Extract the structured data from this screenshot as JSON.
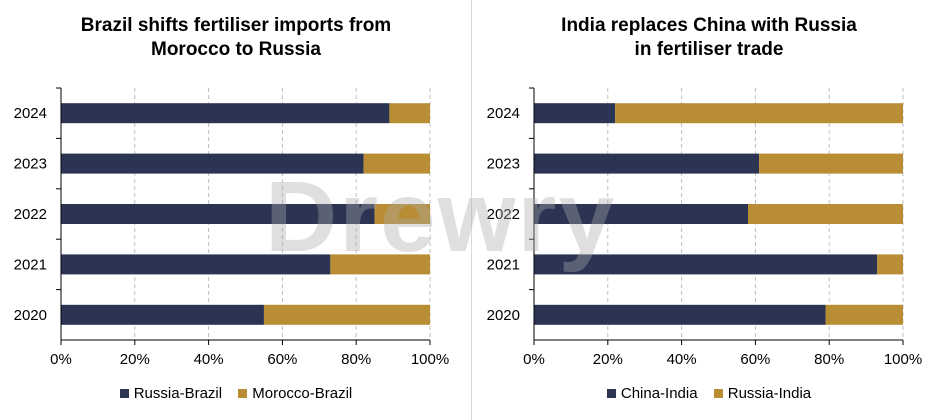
{
  "watermark": "Drewry",
  "colors": {
    "dark": "#2b3553",
    "gold": "#b88d33",
    "grid": "#bfbfbf",
    "axis": "#000000"
  },
  "chart_data": [
    {
      "type": "bar",
      "orientation": "horizontal",
      "stacked": true,
      "title_lines": [
        "Brazil shifts fertiliser imports from",
        "Morocco to Russia"
      ],
      "categories": [
        "2024",
        "2023",
        "2022",
        "2021",
        "2020"
      ],
      "series": [
        {
          "name": "Russia-Brazil",
          "color": "#2b3553",
          "values": [
            89,
            82,
            85,
            73,
            55
          ]
        },
        {
          "name": "Morocco-Brazil",
          "color": "#b88d33",
          "values": [
            11,
            18,
            15,
            27,
            45
          ]
        }
      ],
      "xlim": [
        0,
        100
      ],
      "xticks": [
        "0%",
        "20%",
        "40%",
        "60%",
        "80%",
        "100%"
      ],
      "grid": true,
      "legend": "bottom"
    },
    {
      "type": "bar",
      "orientation": "horizontal",
      "stacked": true,
      "title_lines": [
        "India replaces China with Russia",
        "in fertiliser trade"
      ],
      "categories": [
        "2024",
        "2023",
        "2022",
        "2021",
        "2020"
      ],
      "series": [
        {
          "name": "China-India",
          "color": "#2b3553",
          "values": [
            22,
            61,
            58,
            93,
            79
          ]
        },
        {
          "name": "Russia-India",
          "color": "#b88d33",
          "values": [
            78,
            39,
            42,
            7,
            21
          ]
        }
      ],
      "xlim": [
        0,
        100
      ],
      "xticks": [
        "0%",
        "20%",
        "40%",
        "60%",
        "80%",
        "100%"
      ],
      "grid": true,
      "legend": "bottom"
    }
  ]
}
